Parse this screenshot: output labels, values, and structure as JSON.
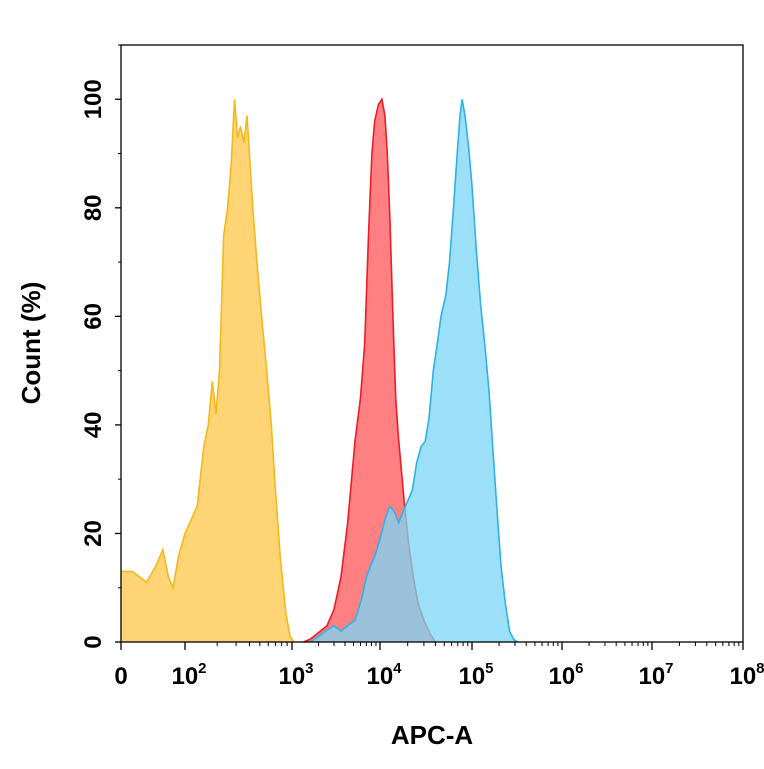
{
  "chart_data": {
    "type": "area",
    "title": "",
    "xlabel": "APC-A",
    "ylabel": "Count (%)",
    "x_scale": "biexponential-log",
    "xlim": [
      0,
      100000000
    ],
    "ylim": [
      0,
      110
    ],
    "grid": false,
    "legend": "none",
    "x_ticks": [
      {
        "value": 0,
        "base": "0",
        "exp": ""
      },
      {
        "value": 100,
        "base": "10",
        "exp": "2"
      },
      {
        "value": 1000,
        "base": "10",
        "exp": "3"
      },
      {
        "value": 10000,
        "base": "10",
        "exp": "4"
      },
      {
        "value": 100000,
        "base": "10",
        "exp": "5"
      },
      {
        "value": 1000000,
        "base": "10",
        "exp": "6"
      },
      {
        "value": 10000000,
        "base": "10",
        "exp": "7"
      },
      {
        "value": 100000000,
        "base": "10",
        "exp": "8"
      }
    ],
    "y_ticks": [
      "0",
      "20",
      "40",
      "60",
      "80",
      "100"
    ],
    "series": [
      {
        "color": "#FFD26E",
        "stroke": "#F5B81C",
        "points": [
          [
            0,
            13
          ],
          [
            15,
            13
          ],
          [
            25,
            11
          ],
          [
            35,
            14
          ],
          [
            45,
            17
          ],
          [
            55,
            12
          ],
          [
            65,
            10
          ],
          [
            80,
            16
          ],
          [
            100,
            20
          ],
          [
            130,
            25
          ],
          [
            150,
            36
          ],
          [
            165,
            40
          ],
          [
            180,
            48
          ],
          [
            195,
            42
          ],
          [
            210,
            50
          ],
          [
            230,
            75
          ],
          [
            250,
            80
          ],
          [
            270,
            88
          ],
          [
            290,
            100
          ],
          [
            310,
            93
          ],
          [
            330,
            95
          ],
          [
            355,
            92
          ],
          [
            380,
            97
          ],
          [
            400,
            90
          ],
          [
            430,
            80
          ],
          [
            470,
            70
          ],
          [
            520,
            60
          ],
          [
            580,
            50
          ],
          [
            640,
            40
          ],
          [
            700,
            28
          ],
          [
            780,
            15
          ],
          [
            880,
            5
          ],
          [
            960,
            1
          ],
          [
            1050,
            0
          ]
        ]
      },
      {
        "color": "#FF7276",
        "stroke": "#EE1C25",
        "points": [
          [
            1350,
            0
          ],
          [
            1600,
            0.5
          ],
          [
            2100,
            2
          ],
          [
            2500,
            3
          ],
          [
            3000,
            6
          ],
          [
            3600,
            12
          ],
          [
            4300,
            22
          ],
          [
            5200,
            37
          ],
          [
            6000,
            45
          ],
          [
            6700,
            55
          ],
          [
            7400,
            75
          ],
          [
            8100,
            90
          ],
          [
            8700,
            96
          ],
          [
            9600,
            99
          ],
          [
            10500,
            100
          ],
          [
            11300,
            97
          ],
          [
            12000,
            90
          ],
          [
            12800,
            78
          ],
          [
            13800,
            60
          ],
          [
            14800,
            45
          ],
          [
            15800,
            38
          ],
          [
            17000,
            32
          ],
          [
            18500,
            25
          ],
          [
            20500,
            18
          ],
          [
            23000,
            12
          ],
          [
            26000,
            7
          ],
          [
            30000,
            4
          ],
          [
            35000,
            1.5
          ],
          [
            40000,
            0
          ]
        ]
      },
      {
        "color": "#79D6F6",
        "stroke": "#2DB2E6",
        "points": [
          [
            1600,
            0
          ],
          [
            2000,
            1
          ],
          [
            2400,
            2
          ],
          [
            3000,
            3
          ],
          [
            3600,
            2
          ],
          [
            4300,
            3
          ],
          [
            5200,
            4
          ],
          [
            6200,
            8
          ],
          [
            7000,
            12
          ],
          [
            7800,
            14
          ],
          [
            8800,
            16
          ],
          [
            10000,
            19
          ],
          [
            11500,
            23
          ],
          [
            12800,
            25
          ],
          [
            14300,
            24
          ],
          [
            16000,
            22
          ],
          [
            17800,
            24
          ],
          [
            20000,
            26
          ],
          [
            22500,
            28
          ],
          [
            25000,
            33
          ],
          [
            28000,
            36
          ],
          [
            31000,
            37
          ],
          [
            34000,
            41
          ],
          [
            38000,
            50
          ],
          [
            42000,
            55
          ],
          [
            46000,
            60
          ],
          [
            52000,
            64
          ],
          [
            57000,
            70
          ],
          [
            63000,
            80
          ],
          [
            69000,
            90
          ],
          [
            74000,
            97
          ],
          [
            78000,
            100
          ],
          [
            84000,
            97
          ],
          [
            92000,
            91
          ],
          [
            100000,
            84
          ],
          [
            112000,
            72
          ],
          [
            125000,
            62
          ],
          [
            140000,
            54
          ],
          [
            155000,
            46
          ],
          [
            170000,
            36
          ],
          [
            190000,
            24
          ],
          [
            210000,
            14
          ],
          [
            235000,
            7
          ],
          [
            262000,
            2
          ],
          [
            290000,
            0.5
          ],
          [
            320000,
            0
          ]
        ]
      }
    ]
  }
}
